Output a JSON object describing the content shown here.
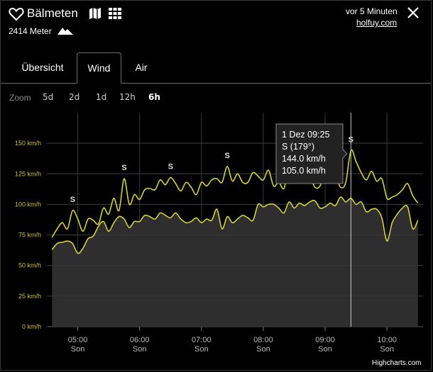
{
  "station": {
    "name": "Bälmeten",
    "altitude": "2414 Meter",
    "updated": "vor 5 Minuten",
    "source": "holfuy.com"
  },
  "icons": {
    "favorite": "heart-icon",
    "map": "map-icon",
    "grid": "grid-icon",
    "mountain": "mountain-icon",
    "close": "close-icon"
  },
  "tabs": [
    {
      "label": "Übersicht",
      "active": false
    },
    {
      "label": "Wind",
      "active": true
    },
    {
      "label": "Air",
      "active": false
    }
  ],
  "zoom": {
    "label": "Zoom",
    "options": [
      "5d",
      "2d",
      "1d",
      "12h",
      "6h"
    ],
    "selected": "6h"
  },
  "tooltip": {
    "time": "1 Dez 09:25",
    "direction": "S (179°)",
    "gust": "144.0 km/h",
    "avg": "105.0 km/h"
  },
  "credit": "Highcharts.com",
  "colors": {
    "line": "#d4d23a",
    "axis_label": "#c9c232",
    "area": "#2e2e2e",
    "grid": "#3a3a3a"
  },
  "chart_data": {
    "type": "line",
    "yunit": "km/h",
    "ylim": [
      0,
      175
    ],
    "yticks": [
      0,
      25,
      50,
      75,
      100,
      125,
      150
    ],
    "ytick_labels": [
      "0 km/h",
      "25 km/h",
      "50 km/h",
      "75 km/h",
      "100 km/h",
      "125 km/h",
      "150 km/h"
    ],
    "xticks": [
      "05:00",
      "06:00",
      "07:00",
      "08:00",
      "09:00",
      "10:00"
    ],
    "xtick_sublabel": "Son",
    "grid": true,
    "series": [
      {
        "kind": "gust",
        "x": [
          "04:35",
          "04:40",
          "04:45",
          "04:50",
          "04:55",
          "05:00",
          "05:05",
          "05:10",
          "05:15",
          "05:20",
          "05:25",
          "05:30",
          "05:35",
          "05:40",
          "05:45",
          "05:50",
          "05:55",
          "06:00",
          "06:05",
          "06:10",
          "06:15",
          "06:20",
          "06:25",
          "06:30",
          "06:35",
          "06:40",
          "06:45",
          "06:50",
          "06:55",
          "07:00",
          "07:05",
          "07:10",
          "07:15",
          "07:20",
          "07:25",
          "07:30",
          "07:35",
          "07:40",
          "07:45",
          "07:50",
          "07:55",
          "08:00",
          "08:05",
          "08:10",
          "08:15",
          "08:20",
          "08:25",
          "08:30",
          "08:35",
          "08:40",
          "08:45",
          "08:50",
          "08:55",
          "09:00",
          "09:05",
          "09:10",
          "09:15",
          "09:20",
          "09:25",
          "09:30",
          "09:35",
          "09:40",
          "09:45",
          "09:50",
          "09:55",
          "10:00",
          "10:05",
          "10:10",
          "10:15",
          "10:20",
          "10:25",
          "10:30"
        ],
        "values": [
          73,
          80,
          85,
          80,
          95,
          88,
          78,
          88,
          87,
          84,
          97,
          92,
          105,
          95,
          121,
          100,
          108,
          104,
          112,
          113,
          112,
          120,
          116,
          122,
          117,
          111,
          118,
          114,
          108,
          118,
          115,
          120,
          121,
          118,
          131,
          119,
          125,
          118,
          118,
          126,
          123,
          120,
          128,
          115,
          118,
          113,
          130,
          118,
          124,
          118,
          123,
          114,
          115,
          126,
          118,
          123,
          114,
          118,
          144,
          135,
          126,
          120,
          127,
          119,
          121,
          105,
          106,
          108,
          112,
          117,
          107,
          101
        ]
      },
      {
        "kind": "average",
        "x": [
          "04:35",
          "04:40",
          "04:45",
          "04:50",
          "04:55",
          "05:00",
          "05:05",
          "05:10",
          "05:15",
          "05:20",
          "05:25",
          "05:30",
          "05:35",
          "05:40",
          "05:45",
          "05:50",
          "05:55",
          "06:00",
          "06:05",
          "06:10",
          "06:15",
          "06:20",
          "06:25",
          "06:30",
          "06:35",
          "06:40",
          "06:45",
          "06:50",
          "06:55",
          "07:00",
          "07:05",
          "07:10",
          "07:15",
          "07:20",
          "07:25",
          "07:30",
          "07:35",
          "07:40",
          "07:45",
          "07:50",
          "07:55",
          "08:00",
          "08:05",
          "08:10",
          "08:15",
          "08:20",
          "08:25",
          "08:30",
          "08:35",
          "08:40",
          "08:45",
          "08:50",
          "08:55",
          "09:00",
          "09:05",
          "09:10",
          "09:15",
          "09:20",
          "09:25",
          "09:30",
          "09:35",
          "09:40",
          "09:45",
          "09:50",
          "09:55",
          "10:00",
          "10:05",
          "10:10",
          "10:15",
          "10:20",
          "10:25",
          "10:30"
        ],
        "values": [
          63,
          68,
          69,
          70,
          68,
          60,
          64,
          72,
          74,
          82,
          86,
          78,
          85,
          90,
          88,
          81,
          86,
          86,
          91,
          90,
          88,
          93,
          91,
          89,
          93,
          88,
          85,
          86,
          89,
          85,
          88,
          87,
          96,
          80,
          90,
          85,
          88,
          91,
          89,
          87,
          100,
          98,
          100,
          100,
          97,
          93,
          102,
          97,
          101,
          99,
          102,
          103,
          97,
          98,
          101,
          99,
          106,
          102,
          105,
          100,
          102,
          94,
          96,
          96,
          89,
          70,
          85,
          92,
          97,
          98,
          80,
          87
        ]
      }
    ]
  }
}
